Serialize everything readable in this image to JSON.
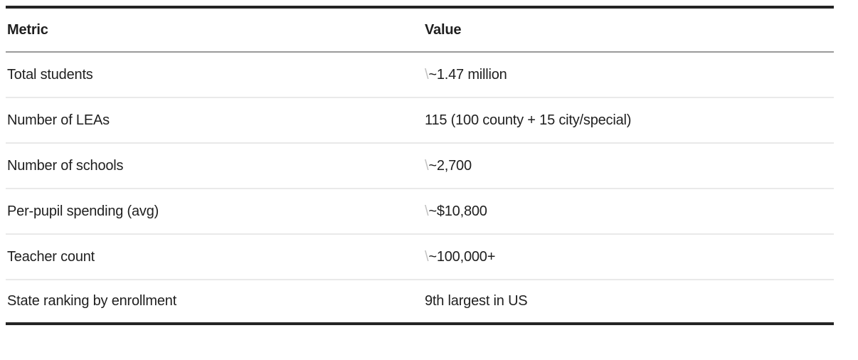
{
  "page": {
    "background": "#ffffff"
  },
  "table": {
    "columns": [
      {
        "key": "metric",
        "label": "Metric"
      },
      {
        "key": "value",
        "label": "Value"
      }
    ],
    "rows": [
      {
        "metric": "Total students",
        "escape": "\\",
        "value": "~1.47 million"
      },
      {
        "metric": "Number of LEAs",
        "escape": "",
        "value": "115 (100 county + 15 city/special)"
      },
      {
        "metric": "Number of schools",
        "escape": "\\",
        "value": "~2,700"
      },
      {
        "metric": "Per-pupil spending (avg)",
        "escape": "\\",
        "value": "~$10,800"
      },
      {
        "metric": "Teacher count",
        "escape": "\\",
        "value": "~100,000+"
      },
      {
        "metric": "State ranking by enrollment",
        "escape": "",
        "value": "9th largest in US"
      }
    ],
    "colors": {
      "text": "#1f1f1f",
      "escape_char": "#c2c2c2",
      "heavy_border": "#242424",
      "header_separator": "#9a9a9a",
      "row_separator": "#e9e9e9"
    }
  }
}
